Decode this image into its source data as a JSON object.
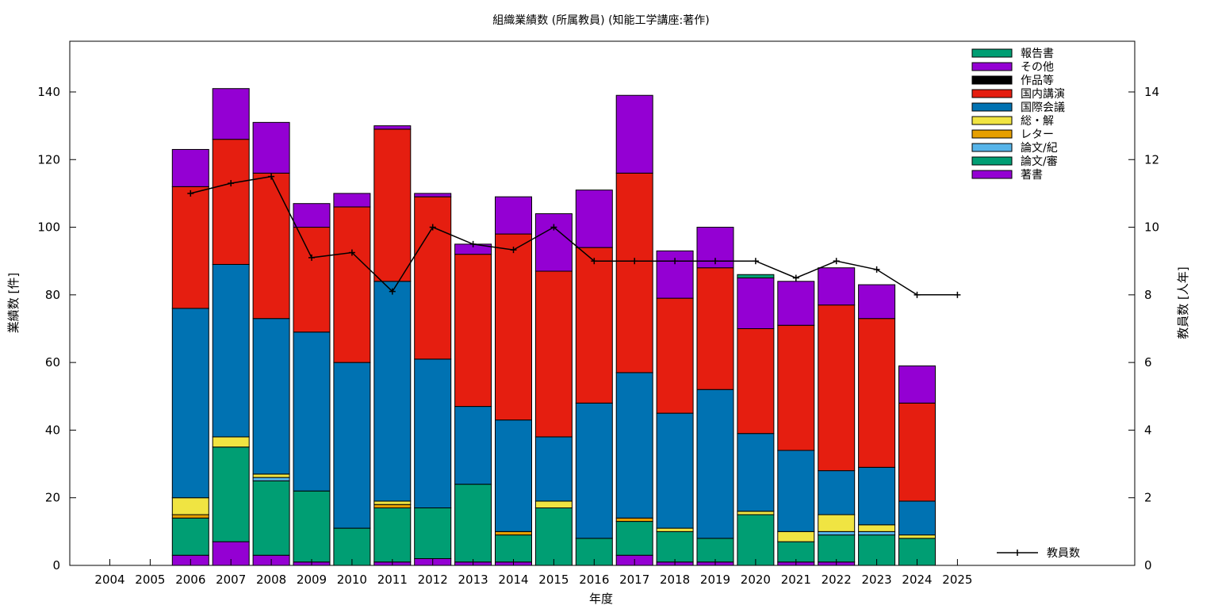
{
  "chart_data": {
    "type": "bar",
    "stacked": true,
    "title": "組織業績数 (所属教員) (知能工学講座:著作)",
    "xlabel": "年度",
    "ylabel": "業績数 [件]",
    "y2label": "教員数 [人年]",
    "categories": [
      "2004",
      "2005",
      "2006",
      "2007",
      "2008",
      "2009",
      "2010",
      "2011",
      "2012",
      "2013",
      "2014",
      "2015",
      "2016",
      "2017",
      "2018",
      "2019",
      "2020",
      "2021",
      "2022",
      "2023",
      "2024",
      "2025"
    ],
    "ylim": [
      0,
      155
    ],
    "y2lim": [
      0,
      15.5
    ],
    "yticks": [
      0,
      20,
      40,
      60,
      80,
      100,
      120,
      140
    ],
    "y2ticks": [
      0,
      2,
      4,
      6,
      8,
      10,
      12,
      14
    ],
    "grid": false,
    "legend_position": "top-right",
    "series": [
      {
        "name": "著書",
        "color": "#9400d3",
        "values": [
          0,
          0,
          3,
          7,
          3,
          1,
          0,
          1,
          2,
          1,
          1,
          0,
          0,
          3,
          1,
          1,
          0,
          1,
          1,
          0,
          0,
          0
        ]
      },
      {
        "name": "論文/審",
        "color": "#009e73",
        "values": [
          0,
          0,
          11,
          28,
          22,
          21,
          11,
          16,
          15,
          23,
          8,
          17,
          8,
          10,
          9,
          7,
          15,
          6,
          8,
          9,
          8,
          0
        ]
      },
      {
        "name": "論文/紀",
        "color": "#56b4e9",
        "values": [
          0,
          0,
          0,
          0,
          1,
          0,
          0,
          0,
          0,
          0,
          0,
          0,
          0,
          0,
          0,
          0,
          0,
          0,
          1,
          1,
          0,
          0
        ]
      },
      {
        "name": "レター",
        "color": "#e69f00",
        "values": [
          0,
          0,
          1,
          0,
          0,
          0,
          0,
          1,
          0,
          0,
          1,
          0,
          0,
          1,
          0,
          0,
          0,
          0,
          0,
          0,
          0,
          0
        ]
      },
      {
        "name": "総・解",
        "color": "#f0e442",
        "values": [
          0,
          0,
          5,
          3,
          1,
          0,
          0,
          1,
          0,
          0,
          0,
          2,
          0,
          0,
          1,
          0,
          1,
          3,
          5,
          2,
          1,
          0
        ]
      },
      {
        "name": "国際会議",
        "color": "#0072b2",
        "values": [
          0,
          0,
          56,
          51,
          46,
          47,
          49,
          65,
          44,
          23,
          33,
          19,
          40,
          43,
          34,
          44,
          23,
          24,
          13,
          17,
          10,
          0
        ]
      },
      {
        "name": "国内講演",
        "color": "#e51e10",
        "values": [
          0,
          0,
          36,
          37,
          43,
          31,
          46,
          45,
          48,
          45,
          55,
          49,
          46,
          59,
          34,
          36,
          31,
          37,
          49,
          44,
          29,
          0
        ]
      },
      {
        "name": "作品等",
        "color": "#000000",
        "values": [
          0,
          0,
          0,
          0,
          0,
          0,
          0,
          0,
          0,
          0,
          0,
          0,
          0,
          0,
          0,
          0,
          0,
          0,
          0,
          0,
          0,
          0
        ]
      },
      {
        "name": "その他",
        "color": "#9400d3",
        "values": [
          0,
          0,
          11,
          15,
          15,
          7,
          4,
          1,
          1,
          3,
          11,
          17,
          17,
          23,
          14,
          12,
          15,
          13,
          11,
          10,
          11,
          0
        ]
      },
      {
        "name": "報告書",
        "color": "#009e73",
        "values": [
          0,
          0,
          0,
          0,
          0,
          0,
          0,
          0,
          0,
          0,
          0,
          0,
          0,
          0,
          0,
          0,
          1,
          0,
          0,
          0,
          0,
          0
        ]
      }
    ],
    "line_series": {
      "name": "教員数",
      "axis": "y2",
      "color": "#000000",
      "values": [
        null,
        null,
        11.0,
        11.3,
        11.5,
        9.1,
        9.25,
        8.1,
        10.0,
        9.5,
        9.33,
        10.0,
        9.0,
        9.0,
        9.0,
        9.0,
        9.0,
        8.5,
        9.0,
        8.75,
        8.0,
        8.0
      ]
    }
  }
}
